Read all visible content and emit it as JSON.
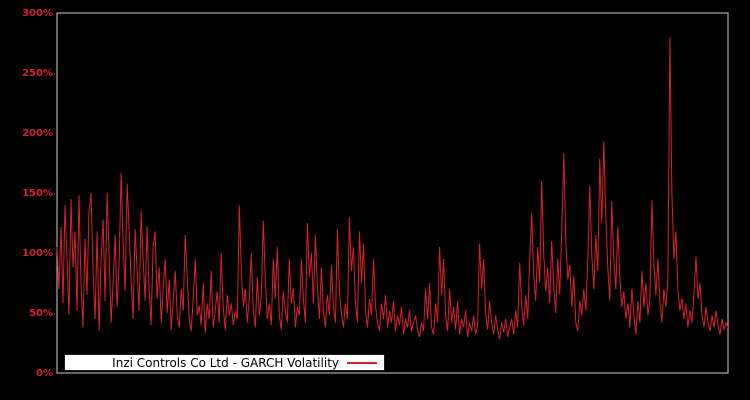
{
  "window": {
    "background_color": "#000000"
  },
  "chart_data": {
    "type": "line",
    "title": "",
    "xlabel": "",
    "ylabel": "",
    "unit": "percent",
    "ylim": [
      0,
      300
    ],
    "x_axis_labels_visible": false,
    "grid": false,
    "background": "#000000",
    "frame_color": "#cccccc",
    "line_color": "#d8222c",
    "tick_color": "#d8222c",
    "legend": {
      "label": "Inzi Controls Co Ltd - GARCH Volatility",
      "position": "inside-bottom-left",
      "background": "#ffffff",
      "text_color": "#000000",
      "sample_line_color": "#d8222c"
    },
    "yticks": [
      {
        "label": "0%",
        "value": 0
      },
      {
        "label": "50%",
        "value": 50
      },
      {
        "label": "100%",
        "value": 100
      },
      {
        "label": "150%",
        "value": 150
      },
      {
        "label": "200%",
        "value": 200
      },
      {
        "label": "250%",
        "value": 250
      },
      {
        "label": "300%",
        "value": 300
      }
    ],
    "series_name": "Inzi Controls Co Ltd - GARCH Volatility",
    "values": [
      105,
      70,
      122,
      58,
      140,
      95,
      48,
      145,
      88,
      118,
      52,
      148,
      75,
      38,
      112,
      65,
      135,
      150,
      82,
      45,
      118,
      35,
      95,
      128,
      60,
      150,
      98,
      42,
      75,
      115,
      55,
      90,
      167,
      110,
      68,
      158,
      120,
      78,
      45,
      120,
      85,
      52,
      135,
      95,
      60,
      122,
      70,
      40,
      105,
      118,
      62,
      88,
      42,
      70,
      95,
      50,
      78,
      36,
      60,
      85,
      48,
      38,
      70,
      52,
      115,
      80,
      45,
      35,
      62,
      95,
      48,
      56,
      40,
      75,
      33,
      58,
      45,
      85,
      38,
      52,
      68,
      42,
      100,
      55,
      36,
      65,
      48,
      58,
      40,
      52,
      45,
      140,
      85,
      55,
      70,
      42,
      62,
      100,
      52,
      38,
      80,
      48,
      65,
      127,
      78,
      45,
      58,
      40,
      95,
      62,
      105,
      48,
      36,
      68,
      52,
      42,
      95,
      58,
      70,
      38,
      55,
      48,
      95,
      62,
      42,
      125,
      80,
      100,
      58,
      115,
      72,
      45,
      88,
      52,
      38,
      65,
      48,
      90,
      55,
      42,
      120,
      68,
      50,
      38,
      58,
      45,
      130,
      85,
      105,
      60,
      42,
      118,
      75,
      108,
      52,
      38,
      62,
      48,
      95,
      55,
      42,
      35,
      58,
      45,
      65,
      38,
      52,
      42,
      60,
      35,
      48,
      40,
      55,
      32,
      45,
      38,
      52,
      35,
      42,
      48,
      36,
      30,
      42,
      35,
      70,
      45,
      75,
      38,
      32,
      58,
      42,
      105,
      65,
      95,
      48,
      35,
      70,
      42,
      55,
      36,
      60,
      32,
      45,
      38,
      52,
      30,
      42,
      35,
      48,
      32,
      40,
      108,
      70,
      95,
      50,
      36,
      60,
      42,
      32,
      48,
      36,
      28,
      42,
      34,
      45,
      30,
      38,
      45,
      32,
      52,
      38,
      92,
      55,
      40,
      65,
      45,
      95,
      133,
      82,
      60,
      105,
      75,
      160,
      100,
      68,
      88,
      58,
      110,
      72,
      50,
      95,
      65,
      120,
      183,
      110,
      78,
      90,
      55,
      81,
      42,
      35,
      60,
      48,
      70,
      52,
      95,
      156,
      98,
      70,
      115,
      85,
      179,
      125,
      193,
      130,
      88,
      60,
      143,
      95,
      70,
      122,
      80,
      55,
      68,
      45,
      58,
      38,
      70,
      48,
      32,
      60,
      42,
      85,
      55,
      75,
      48,
      62,
      144,
      92,
      65,
      95,
      60,
      42,
      70,
      55,
      80,
      280,
      150,
      95,
      118,
      70,
      52,
      62,
      45,
      58,
      38,
      52,
      42,
      65,
      97,
      62,
      75,
      48,
      38,
      55,
      42,
      35,
      48,
      38,
      52,
      40,
      32,
      45,
      36,
      42,
      38
    ]
  }
}
